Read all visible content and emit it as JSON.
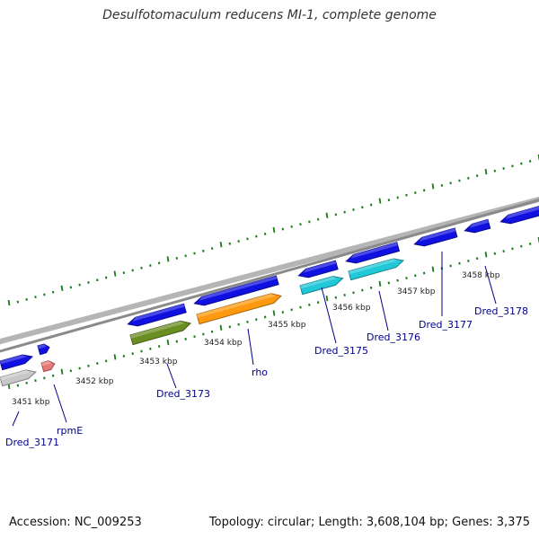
{
  "title": "Desulfotomaculum reducens MI-1, complete genome",
  "footer": {
    "accession": "Accession: NC_009253",
    "summary": "Topology: circular; Length: 3,608,104 bp; Genes: 3,375"
  },
  "colors": {
    "backbone": "#8a8a8a",
    "tick": "#1a7a1a",
    "cds_blue": "#1010e0",
    "cds_cyan": "#20c8d8",
    "cds_green": "#6b8e23",
    "cds_orange": "#ff9a10",
    "cds_gray": "#c8c8c8",
    "rna_pink": "#e87878",
    "label": "#00008b"
  },
  "kbp_labels": [
    "3451 kbp",
    "3452 kbp",
    "3453 kbp",
    "3454 kbp",
    "3455 kbp",
    "3456 kbp",
    "3457 kbp",
    "3458 kbp"
  ],
  "gene_labels": [
    "Dred_3171",
    "rpmE",
    "Dred_3173",
    "rho",
    "Dred_3175",
    "Dred_3176",
    "Dred_3177",
    "Dred_3178"
  ]
}
